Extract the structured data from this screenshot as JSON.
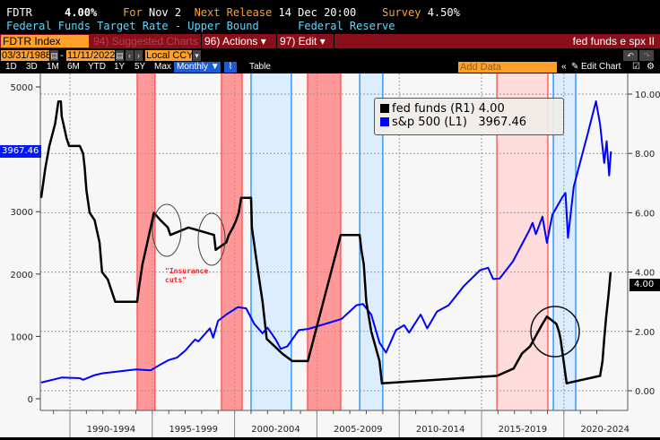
{
  "header": {
    "ticker": "FDTR",
    "value": "4.00%",
    "for_label": "For",
    "for_value": "Nov 2",
    "next_label": "Next Release",
    "next_value": "14 Dec 20:00",
    "survey_label": "Survey",
    "survey_value": "4.50%",
    "description": "Federal Funds Target Rate - Upper Bound",
    "source": "Federal Reserve"
  },
  "toolbar": {
    "security": "FDTR Index",
    "suggested": "94) Suggested Charts",
    "actions": "96) Actions ▾",
    "edit": "97) Edit ▾",
    "chart_title": "fed funds e spx II"
  },
  "range": {
    "start": "03/31/1988",
    "end": "11/11/2022",
    "currency": "Local CCY"
  },
  "tabs": [
    "1D",
    "3D",
    "1M",
    "6M",
    "YTD",
    "1Y",
    "5Y",
    "Max",
    "Monthly ▼",
    "Table"
  ],
  "add_data_placeholder": "Add Data",
  "edit_chart": "Edit Chart",
  "annotation": "\"Insurance\ncuts\"",
  "chart_data": {
    "type": "line",
    "legend": {
      "fed": "fed funds (R1)",
      "fed_value": "4.00",
      "spx": "s&p 500 (L1)",
      "spx_value": "3967.46"
    },
    "left_axis": {
      "ticks": [
        "5000",
        "3000",
        "2000",
        "1000",
        "0"
      ],
      "range": [
        0,
        5000
      ]
    },
    "right_axis": {
      "ticks": [
        "10.00",
        "8.00",
        "6.00",
        "4.00",
        "2.00",
        "0.00"
      ],
      "range": [
        0,
        10
      ]
    },
    "x_labels": [
      "1990-1994",
      "1995-1999",
      "2000-2004",
      "2005-2009",
      "2010-2014",
      "2015-2019",
      "2020-2024"
    ],
    "last_labels": {
      "left": "3967.46",
      "right": "4.00"
    },
    "colors": {
      "fed": "#000000",
      "spx": "#0000ff",
      "hike": "#ff9999",
      "hike_light": "#ffdcdc",
      "cut": "#dcedff"
    },
    "hike_bands": [
      [
        1994.08,
        1995.17
      ],
      [
        1999.2,
        2000.46
      ],
      [
        2004.43,
        2006.45
      ]
    ],
    "hike_band_light": [
      [
        2015.93,
        2019.03
      ]
    ],
    "cut_bands": [
      [
        2001.0,
        2003.45
      ],
      [
        2007.6,
        2009.0
      ],
      [
        2019.36,
        2020.72
      ]
    ],
    "fed_funds": [
      [
        1988.25,
        6.5
      ],
      [
        1988.5,
        7.5
      ],
      [
        1988.75,
        8.25
      ],
      [
        1989.1,
        9.0
      ],
      [
        1989.3,
        9.75
      ],
      [
        1989.45,
        9.75
      ],
      [
        1989.5,
        9.25
      ],
      [
        1989.6,
        9.0
      ],
      [
        1989.8,
        8.5
      ],
      [
        1989.95,
        8.25
      ],
      [
        1990.6,
        8.25
      ],
      [
        1990.8,
        8.0
      ],
      [
        1990.9,
        7.5
      ],
      [
        1991.0,
        6.75
      ],
      [
        1991.2,
        6.0
      ],
      [
        1991.5,
        5.75
      ],
      [
        1991.8,
        5.0
      ],
      [
        1991.95,
        4.0
      ],
      [
        1992.3,
        3.75
      ],
      [
        1992.6,
        3.25
      ],
      [
        1992.75,
        3.0
      ],
      [
        1994.08,
        3.0
      ],
      [
        1994.2,
        3.5
      ],
      [
        1994.4,
        4.25
      ],
      [
        1994.6,
        4.75
      ],
      [
        1994.9,
        5.5
      ],
      [
        1995.1,
        6.0
      ],
      [
        1995.5,
        5.75
      ],
      [
        1995.95,
        5.5
      ],
      [
        1996.1,
        5.25
      ],
      [
        1997.2,
        5.5
      ],
      [
        1998.75,
        5.25
      ],
      [
        1998.85,
        4.75
      ],
      [
        1999.5,
        5.0
      ],
      [
        1999.65,
        5.25
      ],
      [
        1999.9,
        5.5
      ],
      [
        2000.1,
        5.75
      ],
      [
        2000.25,
        6.0
      ],
      [
        2000.4,
        6.5
      ],
      [
        2001.0,
        6.5
      ],
      [
        2001.05,
        5.5
      ],
      [
        2001.3,
        4.5
      ],
      [
        2001.5,
        3.75
      ],
      [
        2001.7,
        3.0
      ],
      [
        2001.95,
        1.75
      ],
      [
        2002.9,
        1.25
      ],
      [
        2003.5,
        1.0
      ],
      [
        2004.45,
        1.0
      ],
      [
        2006.45,
        5.25
      ],
      [
        2007.6,
        5.25
      ],
      [
        2007.7,
        4.75
      ],
      [
        2007.85,
        4.25
      ],
      [
        2008.0,
        3.0
      ],
      [
        2008.3,
        2.0
      ],
      [
        2008.8,
        1.0
      ],
      [
        2008.95,
        0.25
      ],
      [
        2015.95,
        0.5
      ],
      [
        2016.95,
        0.75
      ],
      [
        2017.2,
        1.0
      ],
      [
        2017.45,
        1.25
      ],
      [
        2017.95,
        1.5
      ],
      [
        2018.2,
        1.75
      ],
      [
        2018.45,
        2.0
      ],
      [
        2018.7,
        2.25
      ],
      [
        2018.97,
        2.5
      ],
      [
        2019.55,
        2.25
      ],
      [
        2019.7,
        2.0
      ],
      [
        2019.8,
        1.75
      ],
      [
        2020.17,
        0.25
      ],
      [
        2022.2,
        0.5
      ],
      [
        2022.35,
        1.0
      ],
      [
        2022.45,
        1.75
      ],
      [
        2022.57,
        2.5
      ],
      [
        2022.72,
        3.25
      ],
      [
        2022.84,
        4.0
      ]
    ],
    "sp500": [
      [
        1988.25,
        260
      ],
      [
        1989.5,
        340
      ],
      [
        1990.6,
        330
      ],
      [
        1990.8,
        305
      ],
      [
        1991.5,
        380
      ],
      [
        1992,
        410
      ],
      [
        1993,
        440
      ],
      [
        1994,
        470
      ],
      [
        1994.9,
        455
      ],
      [
        1995.5,
        550
      ],
      [
        1996,
        620
      ],
      [
        1996.5,
        660
      ],
      [
        1997,
        770
      ],
      [
        1997.6,
        950
      ],
      [
        1997.8,
        920
      ],
      [
        1998.5,
        1130
      ],
      [
        1998.7,
        980
      ],
      [
        1999,
        1250
      ],
      [
        1999.5,
        1350
      ],
      [
        2000.2,
        1470
      ],
      [
        2000.7,
        1450
      ],
      [
        2001.2,
        1200
      ],
      [
        2001.7,
        1050
      ],
      [
        2002,
        1140
      ],
      [
        2002.5,
        950
      ],
      [
        2002.8,
        800
      ],
      [
        2003.2,
        840
      ],
      [
        2003.9,
        1100
      ],
      [
        2004.5,
        1120
      ],
      [
        2005.5,
        1200
      ],
      [
        2006.5,
        1280
      ],
      [
        2007.4,
        1500
      ],
      [
        2007.8,
        1520
      ],
      [
        2008.3,
        1350
      ],
      [
        2008.8,
        900
      ],
      [
        2009.2,
        740
      ],
      [
        2009.8,
        1100
      ],
      [
        2010.3,
        1180
      ],
      [
        2010.6,
        1060
      ],
      [
        2011.3,
        1350
      ],
      [
        2011.7,
        1130
      ],
      [
        2012.3,
        1400
      ],
      [
        2013,
        1500
      ],
      [
        2013.9,
        1800
      ],
      [
        2014.9,
        2060
      ],
      [
        2015.4,
        2100
      ],
      [
        2015.7,
        1920
      ],
      [
        2016.1,
        1930
      ],
      [
        2016.9,
        2200
      ],
      [
        2017.9,
        2700
      ],
      [
        2018.1,
        2820
      ],
      [
        2018.3,
        2640
      ],
      [
        2018.7,
        2920
      ],
      [
        2018.97,
        2500
      ],
      [
        2019.3,
        2950
      ],
      [
        2019.9,
        3230
      ],
      [
        2020.1,
        3300
      ],
      [
        2020.25,
        2580
      ],
      [
        2020.6,
        3400
      ],
      [
        2020.95,
        3750
      ],
      [
        2021.5,
        4300
      ],
      [
        2021.95,
        4770
      ],
      [
        2022.2,
        4400
      ],
      [
        2022.45,
        3780
      ],
      [
        2022.6,
        4130
      ],
      [
        2022.75,
        3580
      ],
      [
        2022.86,
        3967
      ]
    ]
  }
}
